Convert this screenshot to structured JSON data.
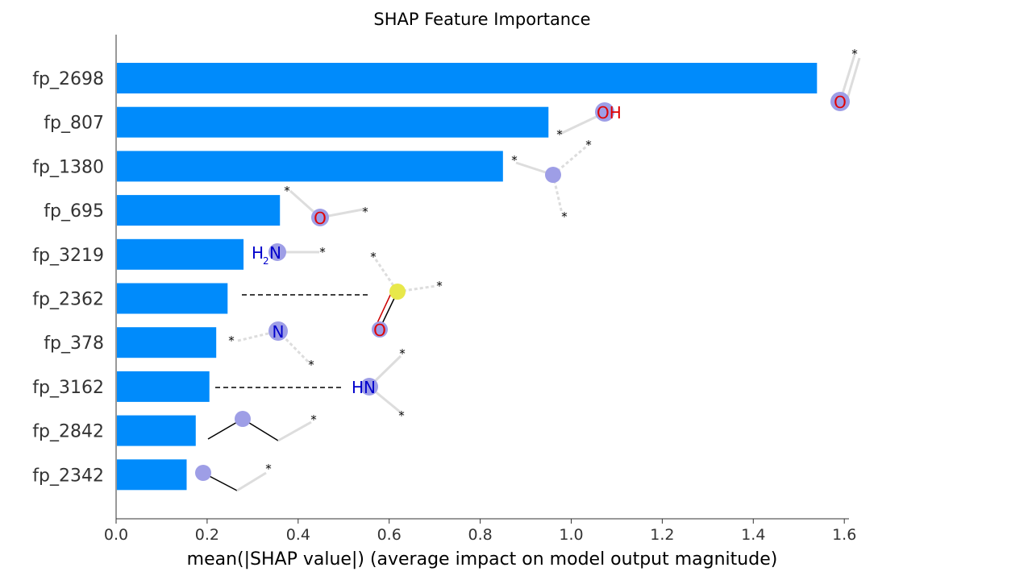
{
  "chart_data": {
    "type": "bar",
    "orientation": "horizontal",
    "title": "SHAP Feature Importance",
    "xlabel": "mean(|SHAP value|) (average impact on model output magnitude)",
    "xlim": [
      0.0,
      1.62
    ],
    "xticks": [
      "0.0",
      "0.2",
      "0.4",
      "0.6",
      "0.8",
      "1.0",
      "1.2",
      "1.4",
      "1.6"
    ],
    "categories": [
      "fp_2698",
      "fp_807",
      "fp_1380",
      "fp_695",
      "fp_3219",
      "fp_2362",
      "fp_378",
      "fp_3162",
      "fp_2842",
      "fp_2342"
    ],
    "values": [
      1.54,
      0.95,
      0.85,
      0.36,
      0.28,
      0.245,
      0.22,
      0.205,
      0.175,
      0.155
    ],
    "bar_color": "#008bfb",
    "grid": false
  },
  "molecule_labels": {
    "fp_2698": "O",
    "fp_807": "OH",
    "fp_695": "O",
    "fp_3219_H": "H",
    "fp_3219_sub": "2",
    "fp_3219_N": "N",
    "fp_2362_O": "O",
    "fp_378": "N",
    "fp_3162": "HN",
    "star": "*"
  }
}
